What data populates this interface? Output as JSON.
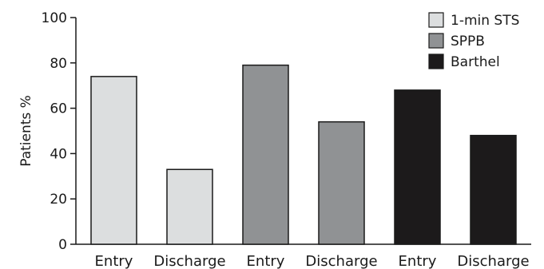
{
  "chart_data": {
    "type": "bar",
    "title": "",
    "xlabel": "",
    "ylabel": "Patients %",
    "ylim": [
      0,
      100
    ],
    "yticks": [
      0,
      20,
      40,
      60,
      80,
      100
    ],
    "grid": false,
    "legend_position": "top-right",
    "categories": [
      "Entry",
      "Discharge",
      "Entry",
      "Discharge",
      "Entry",
      "Discharge"
    ],
    "bars": [
      {
        "series": "1-min STS",
        "category": "Entry",
        "value": 74
      },
      {
        "series": "1-min STS",
        "category": "Discharge",
        "value": 33
      },
      {
        "series": "SPPB",
        "category": "Entry",
        "value": 79
      },
      {
        "series": "SPPB",
        "category": "Discharge",
        "value": 54
      },
      {
        "series": "Barthel",
        "category": "Entry",
        "value": 68
      },
      {
        "series": "Barthel",
        "category": "Discharge",
        "value": 48
      }
    ],
    "series": [
      {
        "name": "1-min STS",
        "color": "#dcdedf"
      },
      {
        "name": "SPPB",
        "color": "#909294"
      },
      {
        "name": "Barthel",
        "color": "#1c1a1b"
      }
    ]
  }
}
